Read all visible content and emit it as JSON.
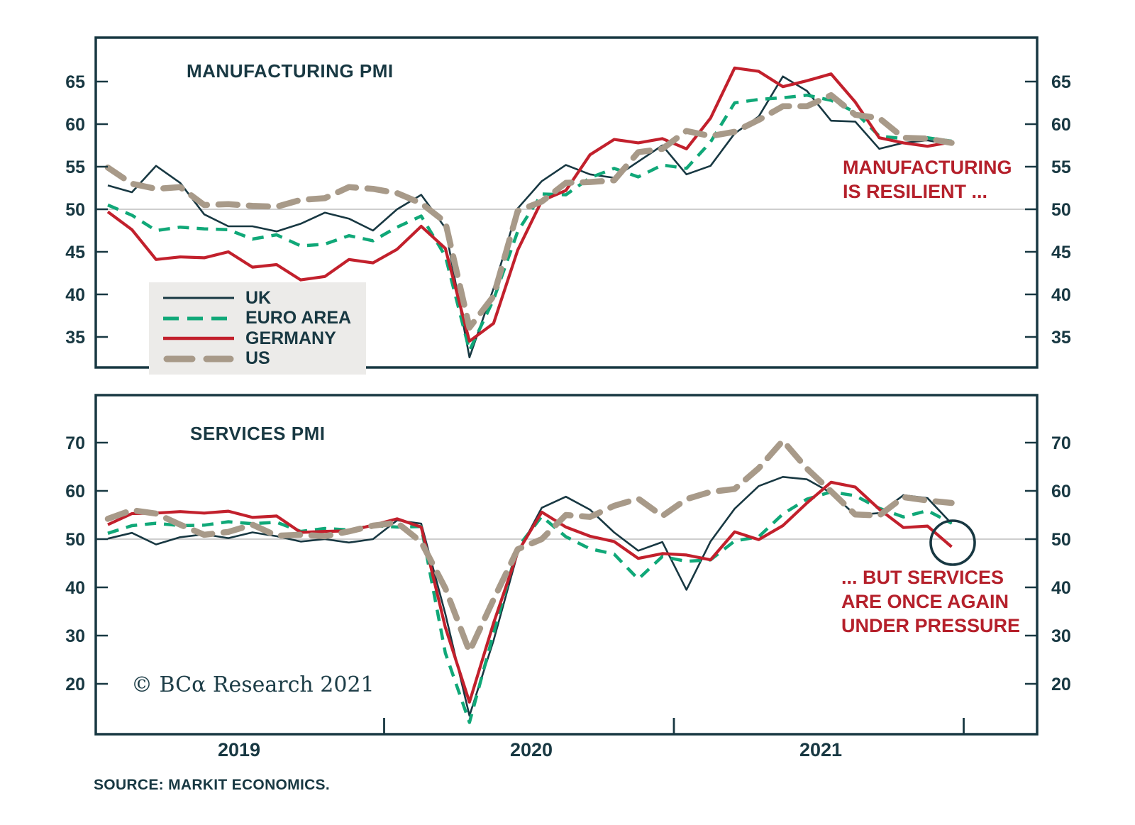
{
  "meta": {
    "copyright": "© BCα Research 2021",
    "source": "SOURCE: MARKIT ECONOMICS."
  },
  "colors": {
    "axis": "#183842",
    "uk": "#183842",
    "euro_area": "#10a878",
    "germany": "#c2202c",
    "us": "#a89a89",
    "annotation_red": "#b5202b",
    "fifty_line": "#b0b0b0",
    "legend_bg": "#ecebe9"
  },
  "annotations": {
    "manufacturing": "MANUFACTURING\nIS RESILIENT ...",
    "services": "... BUT SERVICES\nARE ONCE AGAIN\nUNDER PRESSURE",
    "circle_marker": "germany-services-latest-reading"
  },
  "x_axis": {
    "year_labels": [
      "2019",
      "2020",
      "2021"
    ]
  },
  "legend": {
    "items": [
      {
        "label": "UK",
        "style": "uk"
      },
      {
        "label": "EURO AREA",
        "style": "euro_area"
      },
      {
        "label": "GERMANY",
        "style": "germany"
      },
      {
        "label": "US",
        "style": "us"
      }
    ]
  },
  "months": [
    "2019-01",
    "2019-02",
    "2019-03",
    "2019-04",
    "2019-05",
    "2019-06",
    "2019-07",
    "2019-08",
    "2019-09",
    "2019-10",
    "2019-11",
    "2019-12",
    "2020-01",
    "2020-02",
    "2020-03",
    "2020-04",
    "2020-05",
    "2020-06",
    "2020-07",
    "2020-08",
    "2020-09",
    "2020-10",
    "2020-11",
    "2020-12",
    "2021-01",
    "2021-02",
    "2021-03",
    "2021-04",
    "2021-05",
    "2021-06",
    "2021-07",
    "2021-08",
    "2021-09",
    "2021-10",
    "2021-11",
    "2021-12"
  ],
  "chart_data": [
    {
      "type": "line",
      "title": "MANUFACTURING PMI",
      "ylabel": "",
      "ylim": [
        31,
        70
      ],
      "yticks": [
        35,
        40,
        45,
        50,
        55,
        60,
        65
      ],
      "reference_line": 50,
      "grid": false,
      "legend_position": "lower-left",
      "series": [
        {
          "name": "UK",
          "style": "uk",
          "values": [
            52.8,
            52.0,
            55.1,
            53.1,
            49.4,
            48.0,
            48.0,
            47.4,
            48.3,
            49.6,
            48.9,
            47.5,
            50.0,
            51.7,
            47.8,
            32.6,
            40.7,
            50.1,
            53.3,
            55.2,
            54.1,
            53.7,
            55.6,
            57.5,
            54.1,
            55.1,
            58.9,
            60.9,
            65.6,
            63.9,
            60.4,
            60.3,
            57.1,
            57.8,
            58.1,
            57.6
          ]
        },
        {
          "name": "EURO AREA",
          "style": "euro_area",
          "values": [
            50.5,
            49.3,
            47.5,
            47.9,
            47.7,
            47.6,
            46.5,
            47.0,
            45.7,
            45.9,
            46.9,
            46.3,
            47.9,
            49.2,
            44.5,
            33.4,
            39.4,
            47.4,
            51.8,
            51.7,
            53.7,
            54.8,
            53.8,
            55.2,
            54.8,
            57.9,
            62.5,
            62.9,
            63.1,
            63.4,
            62.8,
            61.4,
            58.6,
            58.3,
            58.4,
            58.0
          ]
        },
        {
          "name": "GERMANY",
          "style": "germany",
          "values": [
            49.7,
            47.6,
            44.1,
            44.4,
            44.3,
            45.0,
            43.2,
            43.5,
            41.7,
            42.1,
            44.1,
            43.7,
            45.3,
            48.0,
            45.4,
            34.5,
            36.6,
            45.2,
            51.0,
            52.2,
            56.4,
            58.2,
            57.8,
            58.3,
            57.1,
            60.7,
            66.6,
            66.2,
            64.4,
            65.1,
            65.9,
            62.6,
            58.4,
            57.8,
            57.4,
            57.9
          ]
        },
        {
          "name": "US",
          "style": "us",
          "values": [
            54.9,
            53.0,
            52.4,
            52.6,
            50.5,
            50.6,
            50.4,
            50.3,
            51.1,
            51.3,
            52.6,
            52.4,
            51.9,
            50.7,
            48.5,
            36.1,
            39.8,
            49.8,
            50.9,
            53.1,
            53.2,
            53.4,
            56.7,
            57.1,
            59.2,
            58.6,
            59.1,
            60.5,
            62.1,
            62.1,
            63.4,
            61.1,
            60.7,
            58.4,
            58.3,
            57.8
          ]
        }
      ]
    },
    {
      "type": "line",
      "title": "SERVICES PMI",
      "ylabel": "",
      "ylim": [
        8,
        80
      ],
      "yticks": [
        20,
        30,
        40,
        50,
        60,
        70
      ],
      "reference_line": 50,
      "grid": false,
      "legend_position": "none",
      "series": [
        {
          "name": "UK",
          "style": "uk",
          "values": [
            50.1,
            51.3,
            48.9,
            50.4,
            51.0,
            50.2,
            51.4,
            50.6,
            49.5,
            50.0,
            49.3,
            50.0,
            53.9,
            53.2,
            34.5,
            13.4,
            29.0,
            47.1,
            56.5,
            58.8,
            56.1,
            51.4,
            47.6,
            49.4,
            39.5,
            49.5,
            56.3,
            61.0,
            62.9,
            62.4,
            59.6,
            55.0,
            55.4,
            59.1,
            58.5,
            53.2
          ]
        },
        {
          "name": "EURO AREA",
          "style": "euro_area",
          "values": [
            51.2,
            52.8,
            53.3,
            52.8,
            52.9,
            53.6,
            53.2,
            53.5,
            51.6,
            52.2,
            51.9,
            52.8,
            52.5,
            52.6,
            26.4,
            12.0,
            30.5,
            48.3,
            54.7,
            50.5,
            48.0,
            46.9,
            41.7,
            46.4,
            45.4,
            45.7,
            49.6,
            50.5,
            55.2,
            58.3,
            59.8,
            59.0,
            56.4,
            54.6,
            55.9,
            53.3
          ]
        },
        {
          "name": "GERMANY",
          "style": "germany",
          "values": [
            53.0,
            55.3,
            55.4,
            55.7,
            55.4,
            55.8,
            54.5,
            54.8,
            51.4,
            51.6,
            51.7,
            52.9,
            54.2,
            52.5,
            31.7,
            16.2,
            32.6,
            47.3,
            55.6,
            52.5,
            50.6,
            49.5,
            46.0,
            47.0,
            46.7,
            45.7,
            51.5,
            49.9,
            52.8,
            57.5,
            61.8,
            60.8,
            56.2,
            52.4,
            52.7,
            48.4
          ]
        },
        {
          "name": "US",
          "style": "us",
          "values": [
            54.2,
            56.0,
            55.3,
            53.0,
            50.9,
            51.5,
            53.0,
            50.7,
            50.9,
            50.6,
            51.6,
            52.8,
            53.4,
            49.4,
            39.8,
            26.7,
            37.5,
            47.9,
            50.0,
            55.0,
            54.6,
            56.9,
            58.4,
            54.8,
            58.3,
            59.8,
            60.4,
            64.7,
            70.4,
            64.6,
            59.9,
            55.1,
            54.9,
            58.7,
            58.0,
            57.5
          ]
        }
      ]
    }
  ]
}
